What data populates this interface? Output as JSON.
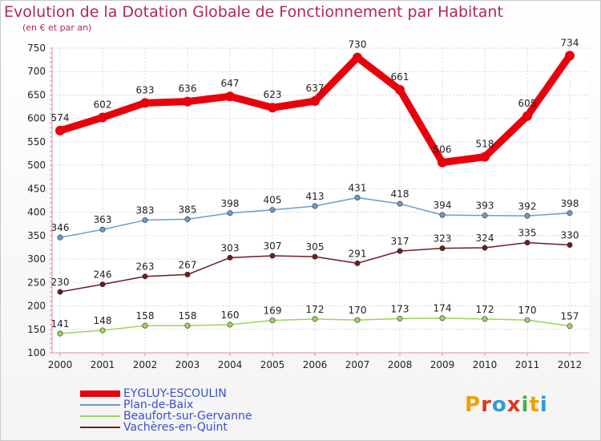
{
  "chart_data": {
    "type": "line",
    "title": "Evolution de la Dotation Globale de Fonctionnement par Habitant",
    "subtitle": "(en € et par an)",
    "xlabel": "",
    "ylabel": "",
    "categories": [
      "2000",
      "2001",
      "2002",
      "2003",
      "2004",
      "2005",
      "2006",
      "2007",
      "2008",
      "2009",
      "2010",
      "2011",
      "2012"
    ],
    "ylim": [
      100,
      750
    ],
    "yticks": [
      100,
      150,
      200,
      250,
      300,
      350,
      400,
      450,
      500,
      550,
      600,
      650,
      700,
      750
    ],
    "grid": true,
    "legend_position": "bottom-left",
    "series": [
      {
        "name": "EYGLUY-ESCOULIN",
        "color": "#e8000c",
        "values": [
          574,
          602,
          633,
          636,
          647,
          623,
          637,
          730,
          661,
          506,
          518,
          605,
          734
        ]
      },
      {
        "name": "Plan-de-Baix",
        "color": "#6a9ccc",
        "values": [
          346,
          363,
          383,
          385,
          398,
          405,
          413,
          431,
          418,
          394,
          393,
          392,
          398
        ]
      },
      {
        "name": "Beaufort-sur-Gervanne",
        "color": "#9fd25a",
        "values": [
          141,
          148,
          158,
          158,
          160,
          169,
          172,
          170,
          173,
          174,
          172,
          170,
          157
        ]
      },
      {
        "name": "Vachères-en-Quint",
        "color": "#6e1c22",
        "values": [
          230,
          246,
          263,
          267,
          303,
          307,
          305,
          291,
          317,
          323,
          324,
          335,
          330
        ]
      }
    ]
  },
  "logo": {
    "text": "Proxiti",
    "letters": [
      "P",
      "r",
      "o",
      "x",
      "i",
      "t",
      "i"
    ],
    "colors": [
      "#f0a000",
      "#d93a1e",
      "#2f9bd8",
      "#d93a1e",
      "#43b24a",
      "#f0a000",
      "#2f9bd8"
    ]
  }
}
